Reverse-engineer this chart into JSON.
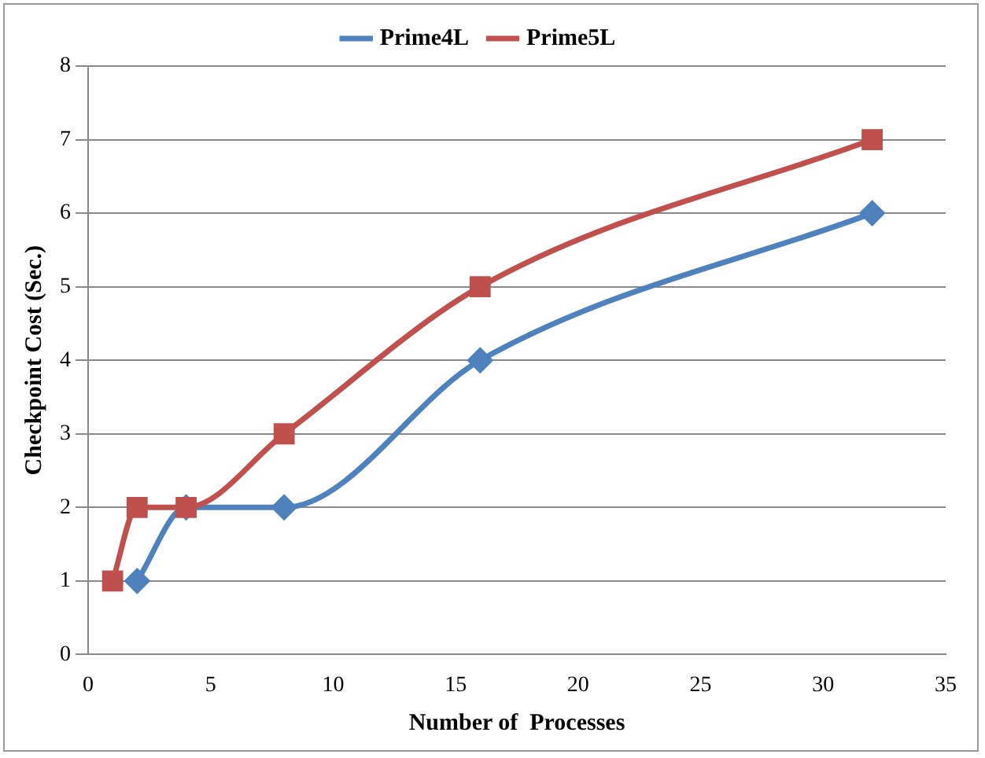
{
  "chart_data": {
    "type": "line",
    "xlabel": "Number of  Processes",
    "ylabel": "Checkpoint Cost (Sec.)",
    "xlim": [
      0,
      35
    ],
    "xticks": [
      0,
      5,
      10,
      15,
      20,
      25,
      30,
      35
    ],
    "ylim": [
      0,
      8
    ],
    "yticks": [
      0,
      1,
      2,
      3,
      4,
      5,
      6,
      7,
      8
    ],
    "grid": "y",
    "legend": "top",
    "series": [
      {
        "name": "Prime4L",
        "color": "#4f81bd",
        "marker": "diamond",
        "x": [
          2,
          4,
          8,
          16,
          32
        ],
        "values": [
          1,
          2,
          2,
          4,
          6
        ]
      },
      {
        "name": "Prime5L",
        "color": "#c0504d",
        "marker": "square",
        "x": [
          1,
          2,
          4,
          8,
          16,
          32
        ],
        "values": [
          1,
          2,
          2,
          3,
          5,
          7
        ]
      }
    ]
  }
}
